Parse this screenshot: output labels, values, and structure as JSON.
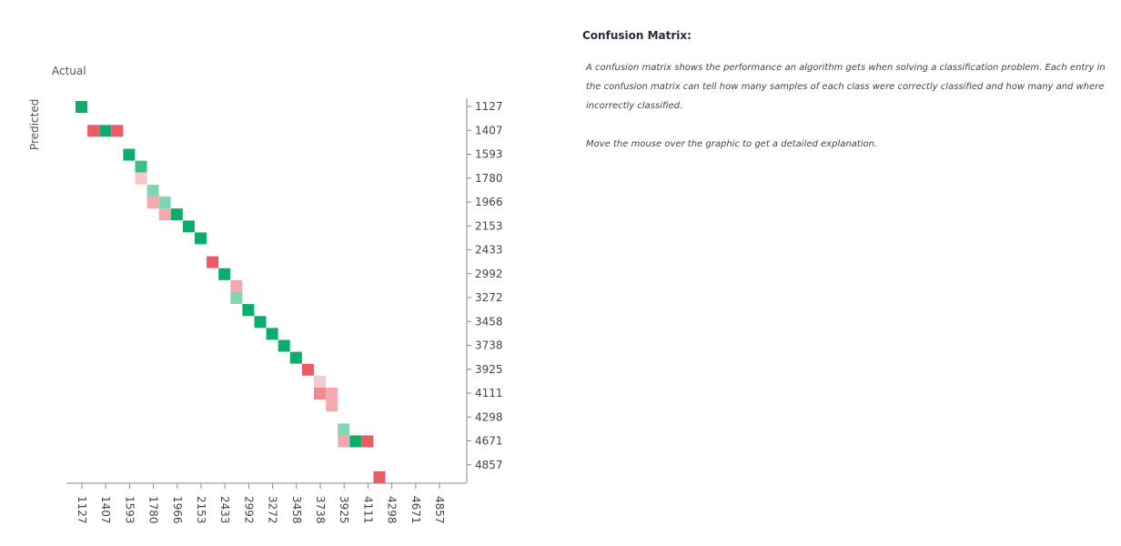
{
  "chart_data": {
    "type": "heatmap",
    "title": "",
    "xlabel": "Actual",
    "ylabel": "Predicted",
    "x_categories": [
      "1127",
      "1407",
      "1593",
      "1780",
      "1966",
      "2153",
      "2433",
      "2992",
      "3272",
      "3458",
      "3738",
      "3925",
      "4111",
      "4298",
      "4671",
      "4857"
    ],
    "y_categories": [
      "1127",
      "1407",
      "1593",
      "1780",
      "1966",
      "2153",
      "2433",
      "2992",
      "3272",
      "3458",
      "3738",
      "3925",
      "4111",
      "4298",
      "4671",
      "4857"
    ],
    "colors": {
      "correct_strong": "#0aad6b",
      "correct_medium": "#3cbe87",
      "correct_light": "#7fd6b1",
      "wrong_strong": "#ea5b63",
      "wrong_medium": "#f08a91",
      "wrong_light": "#f5a9ae",
      "wrong_pale": "#f8c7cb"
    },
    "cells": [
      {
        "x": 0,
        "y": 0,
        "color": "correct_strong"
      },
      {
        "x": 1,
        "y": 1,
        "color": "wrong_strong"
      },
      {
        "x": 2,
        "y": 1,
        "color": "correct_strong"
      },
      {
        "x": 3,
        "y": 1,
        "color": "wrong_strong"
      },
      {
        "x": 4,
        "y": 2,
        "color": "correct_strong"
      },
      {
        "x": 5,
        "y": 2.5,
        "color": "correct_medium"
      },
      {
        "x": 5,
        "y": 3,
        "color": "wrong_pale"
      },
      {
        "x": 6,
        "y": 3.5,
        "color": "correct_light"
      },
      {
        "x": 6,
        "y": 4,
        "color": "wrong_light"
      },
      {
        "x": 7,
        "y": 4,
        "color": "correct_light"
      },
      {
        "x": 7,
        "y": 4.5,
        "color": "wrong_light"
      },
      {
        "x": 8,
        "y": 4.5,
        "color": "correct_strong"
      },
      {
        "x": 9,
        "y": 5,
        "color": "correct_strong"
      },
      {
        "x": 10,
        "y": 5.5,
        "color": "correct_strong"
      },
      {
        "x": 11,
        "y": 6.5,
        "color": "wrong_strong"
      },
      {
        "x": 12,
        "y": 7,
        "color": "correct_strong"
      },
      {
        "x": 13,
        "y": 7.5,
        "color": "wrong_light"
      },
      {
        "x": 13,
        "y": 8,
        "color": "correct_light"
      },
      {
        "x": 14,
        "y": 8.5,
        "color": "correct_strong"
      },
      {
        "x": 15,
        "y": 9,
        "color": "correct_strong"
      },
      {
        "x": 16,
        "y": 9.5,
        "color": "correct_strong"
      },
      {
        "x": 17,
        "y": 10,
        "color": "correct_strong"
      },
      {
        "x": 18,
        "y": 10.5,
        "color": "correct_strong"
      },
      {
        "x": 19,
        "y": 11,
        "color": "wrong_strong"
      },
      {
        "x": 20,
        "y": 11.5,
        "color": "wrong_pale"
      },
      {
        "x": 20,
        "y": 12,
        "color": "wrong_medium"
      },
      {
        "x": 21,
        "y": 12,
        "color": "wrong_light"
      },
      {
        "x": 21,
        "y": 12.5,
        "color": "wrong_light"
      },
      {
        "x": 22,
        "y": 13.5,
        "color": "correct_light"
      },
      {
        "x": 22,
        "y": 14,
        "color": "wrong_light"
      },
      {
        "x": 23,
        "y": 14,
        "color": "correct_strong"
      },
      {
        "x": 24,
        "y": 14,
        "color": "wrong_strong"
      },
      {
        "x": 25,
        "y": 15.5,
        "color": "wrong_strong"
      }
    ],
    "grid": false,
    "legend": "none"
  },
  "info": {
    "heading": "Confusion Matrix:",
    "paragraph1": "A confusion matrix shows the performance an algorithm gets when solving a classification problem. Each entry in the confusion matrix can tell how many samples of each class were correctly classified and how many and where incorrectly classified.",
    "paragraph2": "Move the mouse over the graphic to get a detailed explanation."
  }
}
